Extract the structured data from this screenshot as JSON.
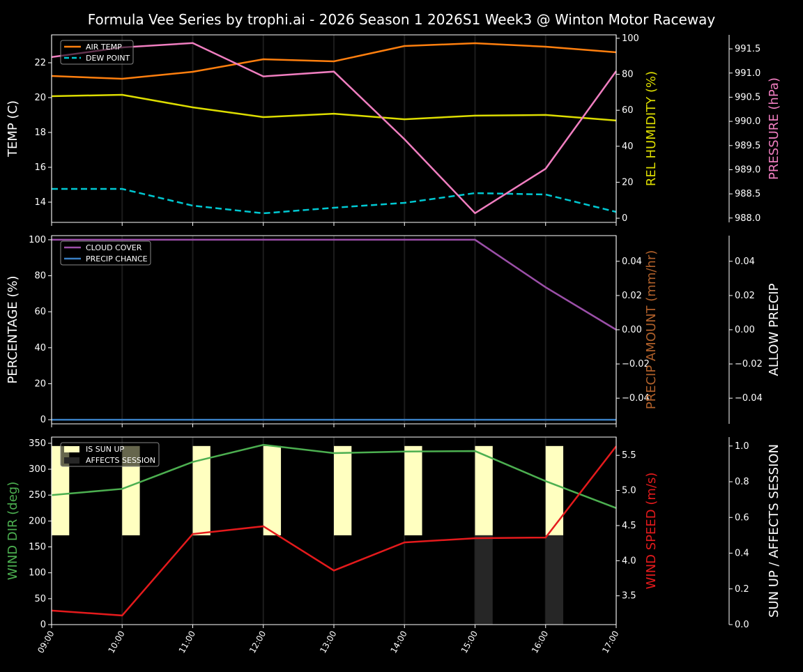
{
  "title": "Formula Vee Series by trophi.ai - 2026 Season 1 2026S1 Week3 @ Winton Motor Raceway",
  "chart_data": [
    {
      "type": "line",
      "x": [
        "09:00",
        "10:00",
        "11:00",
        "12:00",
        "13:00",
        "14:00",
        "15:00",
        "16:00",
        "17:00"
      ],
      "grid": "vertical",
      "legend": "top-left",
      "axes": [
        {
          "id": "temp",
          "label": "TEMP (C)",
          "side": "left",
          "color": "#ffffff",
          "ylim": [
            12.84,
            23.6
          ],
          "ticks": [
            14,
            16,
            18,
            20,
            22
          ]
        },
        {
          "id": "hum",
          "label": "REL HUMIDITY (%)",
          "side": "right",
          "color": "#dddd00",
          "ylim": [
            -2.3,
            101.9
          ],
          "ticks": [
            0,
            20,
            40,
            60,
            80,
            100
          ]
        },
        {
          "id": "pres",
          "label": "PRESSURE (hPa)",
          "side": "far-right",
          "color": "#f07ec0",
          "ylim": [
            987.91,
            991.79
          ],
          "ticks": [
            "988.0",
            "988.5",
            "989.0",
            "989.5",
            "990.0",
            "990.5",
            "991.0",
            "991.5"
          ]
        }
      ],
      "series": [
        {
          "name": "AIR TEMP",
          "axis": "temp",
          "color": "#ff7f0e",
          "dash": false,
          "legend": true,
          "values": [
            21.24,
            21.08,
            21.48,
            22.2,
            22.08,
            22.96,
            23.12,
            22.92,
            22.6
          ]
        },
        {
          "name": "DEW POINT",
          "axis": "temp",
          "color": "#00c8d2",
          "dash": true,
          "legend": true,
          "values": [
            14.76,
            14.76,
            13.8,
            13.36,
            13.68,
            13.96,
            14.52,
            14.44,
            13.44
          ]
        },
        {
          "axis": "hum",
          "color": "#dddd00",
          "dash": false,
          "legend": false,
          "values": [
            67.8,
            68.6,
            61.6,
            56.2,
            58.1,
            55.0,
            57.0,
            57.4,
            54.3
          ]
        },
        {
          "axis": "pres",
          "color": "#f07ec0",
          "dash": false,
          "legend": false,
          "values": [
            991.33,
            991.53,
            991.62,
            990.93,
            991.03,
            989.63,
            988.1,
            989.02,
            991.04
          ]
        }
      ]
    },
    {
      "type": "line",
      "x": [
        "09:00",
        "10:00",
        "11:00",
        "12:00",
        "13:00",
        "14:00",
        "15:00",
        "16:00",
        "17:00"
      ],
      "grid": "vertical",
      "legend": "top-left",
      "axes": [
        {
          "id": "pct",
          "label": "PERCENTAGE (%)",
          "side": "left",
          "color": "#ffffff",
          "ylim": [
            -2.3,
            102.3
          ],
          "ticks": [
            0,
            20,
            40,
            60,
            80,
            100
          ]
        },
        {
          "id": "precip",
          "label": "PRECIP AMOUNT (mm/hr)",
          "side": "right",
          "color": "#b0602a",
          "ylim": [
            -0.055,
            0.055
          ],
          "ticks": [
            "−0.04",
            "−0.02",
            "0.00",
            "0.02",
            "0.04"
          ]
        },
        {
          "id": "allow",
          "label": "ALLOW PRECIP",
          "side": "far-right",
          "color": "#ffffff",
          "ylim": [
            -0.055,
            0.055
          ],
          "ticks": [
            "−0.04",
            "−0.02",
            "0.00",
            "0.02",
            "0.04"
          ]
        }
      ],
      "series": [
        {
          "name": "CLOUD COVER",
          "axis": "pct",
          "color": "#9b4fa8",
          "dash": false,
          "legend": true,
          "values": [
            100,
            100,
            100,
            100,
            100,
            100,
            100,
            73.6,
            50
          ]
        },
        {
          "name": "PRECIP CHANCE",
          "axis": "pct",
          "color": "#3a7fc4",
          "dash": false,
          "legend": true,
          "values": [
            0,
            0,
            0,
            0,
            0,
            0,
            0,
            0,
            0
          ]
        }
      ]
    },
    {
      "type": "line",
      "x": [
        "09:00",
        "10:00",
        "11:00",
        "12:00",
        "13:00",
        "14:00",
        "15:00",
        "16:00",
        "17:00"
      ],
      "grid": "vertical",
      "legend": "top-left",
      "axes": [
        {
          "id": "dir",
          "label": "WIND DIR (deg)",
          "side": "left",
          "color": "#4caf50",
          "ylim": [
            0,
            362
          ],
          "ticks": [
            0,
            50,
            100,
            150,
            200,
            250,
            300,
            350
          ]
        },
        {
          "id": "spd",
          "label": "WIND SPEED (m/s)",
          "side": "right",
          "color": "#e41a1c",
          "ylim": [
            3.09,
            5.76
          ],
          "ticks": [
            "3.5",
            "4.0",
            "4.5",
            "5.0",
            "5.5"
          ]
        },
        {
          "id": "sun",
          "label": "SUN UP / AFFECTS SESSION",
          "side": "far-right",
          "color": "#ffffff",
          "ylim": [
            0,
            1.05
          ],
          "ticks": [
            "0.0",
            "0.2",
            "0.4",
            "0.6",
            "0.8",
            "1.0"
          ]
        }
      ],
      "bars": [
        {
          "name": "IS SUN UP",
          "color": "#ffffc0",
          "values": [
            1,
            1,
            1,
            1,
            1,
            1,
            1,
            1,
            1
          ]
        },
        {
          "name": "AFFECTS SESSION",
          "color": "#262626",
          "values": [
            0,
            0,
            0,
            0,
            0,
            0,
            1,
            1,
            0
          ]
        }
      ],
      "series": [
        {
          "axis": "dir",
          "color": "#4caf50",
          "dash": false,
          "legend": false,
          "values": [
            250,
            262,
            314,
            347,
            331,
            334,
            335,
            277,
            225
          ]
        },
        {
          "axis": "spd",
          "color": "#e41a1c",
          "dash": false,
          "legend": false,
          "values": [
            3.29,
            3.22,
            4.38,
            4.49,
            3.86,
            4.26,
            4.32,
            4.33,
            5.63
          ]
        }
      ]
    }
  ]
}
